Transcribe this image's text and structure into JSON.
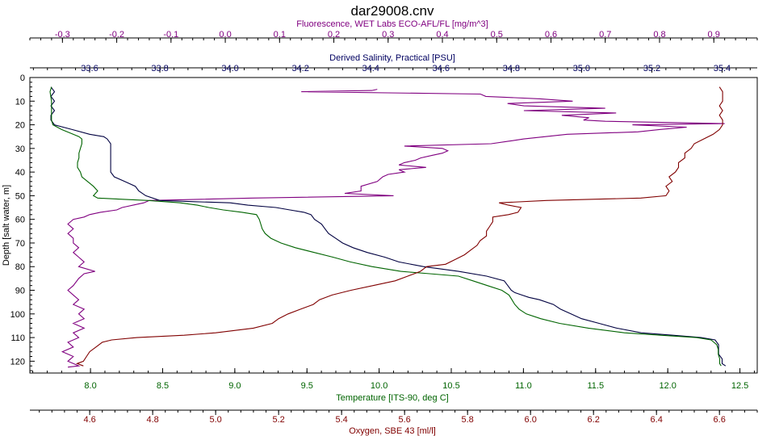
{
  "chart_data": {
    "type": "line",
    "title": "dar29008.cnv",
    "legend": "none",
    "grid": false,
    "colors": {
      "fluorescence": "#800080",
      "salinity": "#000040",
      "temperature": "#006400",
      "oxygen": "#800000"
    },
    "y_axis": {
      "label": "Depth [salt water, m]",
      "range": [
        0,
        125
      ],
      "inverted": true,
      "ticks": [
        "0",
        "10",
        "20",
        "30",
        "40",
        "50",
        "60",
        "70",
        "80",
        "90",
        "100",
        "110",
        "120"
      ]
    },
    "x_axes": [
      {
        "id": "fluorescence",
        "position": "top-outer",
        "label": "Fluorescence, WET Labs ECO-AFL/FL [mg/m^3]",
        "range": [
          -0.36,
          0.98
        ],
        "ticks": [
          "-0.3",
          "-0.2",
          "-0.1",
          "0.0",
          "0.1",
          "0.2",
          "0.3",
          "0.4",
          "0.5",
          "0.6",
          "0.7",
          "0.8",
          "0.9"
        ]
      },
      {
        "id": "salinity",
        "position": "top-inner",
        "label": "Derived Salinity, Practical [PSU]",
        "range": [
          33.43,
          35.5
        ],
        "ticks": [
          "33.6",
          "33.8",
          "34.0",
          "34.2",
          "34.4",
          "34.6",
          "34.8",
          "35.0",
          "35.2",
          "35.4"
        ]
      },
      {
        "id": "temperature",
        "position": "bottom-inner",
        "label": "Temperature [ITS-90, deg C]",
        "range": [
          7.58,
          12.62
        ],
        "ticks": [
          "8.0",
          "8.5",
          "9.0",
          "9.5",
          "10.0",
          "10.5",
          "11.0",
          "11.5",
          "12.0",
          "12.5"
        ]
      },
      {
        "id": "oxygen",
        "position": "bottom-outer",
        "label": "Oxygen, SBE 43 [ml/l]",
        "range": [
          4.41,
          6.72
        ],
        "ticks": [
          "4.6",
          "4.8",
          "5.0",
          "5.2",
          "5.4",
          "5.6",
          "5.8",
          "6.0",
          "6.2",
          "6.4",
          "6.6"
        ]
      }
    ],
    "series": [
      {
        "axis": "fluorescence",
        "points": [
          [
            0.28,
            5
          ],
          [
            0.27,
            5.5
          ],
          [
            0.14,
            6
          ],
          [
            0.47,
            7
          ],
          [
            0.48,
            8
          ],
          [
            0.58,
            9
          ],
          [
            0.64,
            10
          ],
          [
            0.52,
            11
          ],
          [
            0.55,
            12
          ],
          [
            0.7,
            13
          ],
          [
            0.55,
            14
          ],
          [
            0.72,
            15
          ],
          [
            0.62,
            16
          ],
          [
            0.67,
            17
          ],
          [
            0.66,
            18
          ],
          [
            0.7,
            18.5
          ],
          [
            0.92,
            19.5
          ],
          [
            0.75,
            20
          ],
          [
            0.85,
            21
          ],
          [
            0.8,
            22
          ],
          [
            0.76,
            23
          ],
          [
            0.63,
            24
          ],
          [
            0.59,
            25
          ],
          [
            0.55,
            26
          ],
          [
            0.52,
            27
          ],
          [
            0.49,
            28
          ],
          [
            0.33,
            29
          ],
          [
            0.4,
            30
          ],
          [
            0.41,
            31
          ],
          [
            0.4,
            32
          ],
          [
            0.38,
            33
          ],
          [
            0.36,
            34
          ],
          [
            0.35,
            35
          ],
          [
            0.33,
            36
          ],
          [
            0.32,
            37
          ],
          [
            0.37,
            38
          ],
          [
            0.32,
            39
          ],
          [
            0.33,
            40
          ],
          [
            0.3,
            41
          ],
          [
            0.29,
            42
          ],
          [
            0.28,
            44
          ],
          [
            0.25,
            46
          ],
          [
            0.25,
            48
          ],
          [
            0.22,
            49
          ],
          [
            0.31,
            50
          ],
          [
            0.05,
            51
          ],
          [
            -0.14,
            52
          ],
          [
            -0.15,
            53
          ],
          [
            -0.17,
            54
          ],
          [
            -0.19,
            55
          ],
          [
            -0.2,
            56
          ],
          [
            -0.23,
            57
          ],
          [
            -0.25,
            58
          ],
          [
            -0.26,
            59
          ],
          [
            -0.28,
            60
          ],
          [
            -0.29,
            62
          ],
          [
            -0.28,
            64
          ],
          [
            -0.29,
            66
          ],
          [
            -0.28,
            68
          ],
          [
            -0.28,
            70
          ],
          [
            -0.27,
            72
          ],
          [
            -0.28,
            74
          ],
          [
            -0.27,
            76
          ],
          [
            -0.26,
            78
          ],
          [
            -0.27,
            80
          ],
          [
            -0.24,
            82
          ],
          [
            -0.26,
            83
          ],
          [
            -0.27,
            85
          ],
          [
            -0.28,
            88
          ],
          [
            -0.29,
            90
          ],
          [
            -0.28,
            92
          ],
          [
            -0.27,
            94
          ],
          [
            -0.28,
            96
          ],
          [
            -0.26,
            98
          ],
          [
            -0.27,
            100
          ],
          [
            -0.26,
            102
          ],
          [
            -0.28,
            104
          ],
          [
            -0.26,
            106
          ],
          [
            -0.28,
            108
          ],
          [
            -0.27,
            110
          ],
          [
            -0.29,
            112
          ],
          [
            -0.28,
            114
          ],
          [
            -0.3,
            116
          ],
          [
            -0.28,
            118
          ],
          [
            -0.29,
            120
          ],
          [
            -0.28,
            121
          ],
          [
            -0.27,
            122
          ],
          [
            -0.29,
            122.5
          ]
        ]
      },
      {
        "axis": "salinity",
        "points": [
          [
            33.49,
            4
          ],
          [
            33.5,
            6
          ],
          [
            33.49,
            8
          ],
          [
            33.5,
            10
          ],
          [
            33.49,
            12
          ],
          [
            33.5,
            14
          ],
          [
            33.49,
            16
          ],
          [
            33.49,
            18
          ],
          [
            33.5,
            20
          ],
          [
            33.55,
            22
          ],
          [
            33.6,
            24
          ],
          [
            33.64,
            25
          ],
          [
            33.65,
            26
          ],
          [
            33.66,
            28
          ],
          [
            33.66,
            30
          ],
          [
            33.66,
            32
          ],
          [
            33.66,
            36
          ],
          [
            33.66,
            40
          ],
          [
            33.67,
            42
          ],
          [
            33.7,
            44
          ],
          [
            33.73,
            46
          ],
          [
            33.74,
            48
          ],
          [
            33.76,
            50
          ],
          [
            33.8,
            52
          ],
          [
            33.89,
            52.5
          ],
          [
            34.0,
            53
          ],
          [
            34.05,
            54
          ],
          [
            34.13,
            55
          ],
          [
            34.17,
            56
          ],
          [
            34.21,
            57
          ],
          [
            34.23,
            58
          ],
          [
            34.24,
            60
          ],
          [
            34.25,
            61
          ],
          [
            34.26,
            62
          ],
          [
            34.27,
            64
          ],
          [
            34.28,
            66
          ],
          [
            34.3,
            68
          ],
          [
            34.32,
            70
          ],
          [
            34.35,
            72
          ],
          [
            34.39,
            74
          ],
          [
            34.44,
            76
          ],
          [
            34.48,
            78
          ],
          [
            34.55,
            80
          ],
          [
            34.65,
            82
          ],
          [
            34.73,
            84
          ],
          [
            34.78,
            86
          ],
          [
            34.79,
            88
          ],
          [
            34.8,
            90
          ],
          [
            34.81,
            91
          ],
          [
            34.83,
            92
          ],
          [
            34.85,
            93
          ],
          [
            34.88,
            94
          ],
          [
            34.92,
            96
          ],
          [
            34.94,
            98
          ],
          [
            34.97,
            100
          ],
          [
            35.0,
            102
          ],
          [
            35.05,
            104
          ],
          [
            35.1,
            106
          ],
          [
            35.17,
            108
          ],
          [
            35.26,
            109
          ],
          [
            35.34,
            110
          ],
          [
            35.38,
            111
          ],
          [
            35.39,
            113
          ],
          [
            35.39,
            115
          ],
          [
            35.39,
            117
          ],
          [
            35.4,
            119
          ],
          [
            35.4,
            121
          ],
          [
            35.41,
            122
          ]
        ]
      },
      {
        "axis": "temperature",
        "points": [
          [
            7.73,
            4
          ],
          [
            7.72,
            6
          ],
          [
            7.73,
            10
          ],
          [
            7.73,
            14
          ],
          [
            7.73,
            18
          ],
          [
            7.74,
            20
          ],
          [
            7.8,
            22
          ],
          [
            7.88,
            24
          ],
          [
            7.92,
            25
          ],
          [
            7.94,
            26
          ],
          [
            7.94,
            28
          ],
          [
            7.93,
            30
          ],
          [
            7.92,
            32
          ],
          [
            7.92,
            34
          ],
          [
            7.91,
            36
          ],
          [
            7.91,
            38
          ],
          [
            7.93,
            40
          ],
          [
            7.94,
            42
          ],
          [
            7.98,
            44
          ],
          [
            8.02,
            46
          ],
          [
            8.05,
            48
          ],
          [
            8.02,
            50
          ],
          [
            8.05,
            51
          ],
          [
            8.22,
            51.5
          ],
          [
            8.4,
            52
          ],
          [
            8.62,
            53
          ],
          [
            8.74,
            54
          ],
          [
            8.82,
            55
          ],
          [
            8.92,
            56
          ],
          [
            9.05,
            57
          ],
          [
            9.15,
            58
          ],
          [
            9.17,
            60
          ],
          [
            9.18,
            62
          ],
          [
            9.19,
            64
          ],
          [
            9.21,
            66
          ],
          [
            9.25,
            68
          ],
          [
            9.32,
            70
          ],
          [
            9.42,
            72
          ],
          [
            9.55,
            74
          ],
          [
            9.68,
            76
          ],
          [
            9.8,
            78
          ],
          [
            9.95,
            80
          ],
          [
            10.15,
            82
          ],
          [
            10.35,
            83
          ],
          [
            10.55,
            84
          ],
          [
            10.65,
            86
          ],
          [
            10.75,
            88
          ],
          [
            10.85,
            90
          ],
          [
            10.9,
            92
          ],
          [
            10.92,
            94
          ],
          [
            10.94,
            96
          ],
          [
            10.97,
            98
          ],
          [
            11.02,
            100
          ],
          [
            11.12,
            102
          ],
          [
            11.25,
            104
          ],
          [
            11.45,
            106
          ],
          [
            11.7,
            108
          ],
          [
            11.95,
            109
          ],
          [
            12.2,
            110
          ],
          [
            12.3,
            111
          ],
          [
            12.34,
            113
          ],
          [
            12.35,
            115
          ],
          [
            12.35,
            117
          ],
          [
            12.36,
            119
          ],
          [
            12.36,
            121
          ],
          [
            12.37,
            122
          ]
        ]
      },
      {
        "axis": "oxygen",
        "points": [
          [
            6.6,
            4
          ],
          [
            6.61,
            6
          ],
          [
            6.61,
            8
          ],
          [
            6.61,
            10
          ],
          [
            6.6,
            12
          ],
          [
            6.61,
            14
          ],
          [
            6.6,
            16
          ],
          [
            6.61,
            18
          ],
          [
            6.61,
            20
          ],
          [
            6.6,
            22
          ],
          [
            6.58,
            24
          ],
          [
            6.55,
            26
          ],
          [
            6.52,
            28
          ],
          [
            6.51,
            30
          ],
          [
            6.49,
            32
          ],
          [
            6.49,
            34
          ],
          [
            6.47,
            36
          ],
          [
            6.47,
            38
          ],
          [
            6.46,
            40
          ],
          [
            6.44,
            42
          ],
          [
            6.45,
            44
          ],
          [
            6.43,
            46
          ],
          [
            6.44,
            48
          ],
          [
            6.43,
            50
          ],
          [
            6.35,
            51
          ],
          [
            6.05,
            52
          ],
          [
            5.9,
            53
          ],
          [
            5.93,
            54
          ],
          [
            5.97,
            55
          ],
          [
            5.96,
            57
          ],
          [
            5.93,
            58
          ],
          [
            5.88,
            59
          ],
          [
            5.88,
            61
          ],
          [
            5.87,
            63
          ],
          [
            5.86,
            65
          ],
          [
            5.86,
            67
          ],
          [
            5.84,
            69
          ],
          [
            5.83,
            71
          ],
          [
            5.81,
            73
          ],
          [
            5.79,
            75
          ],
          [
            5.76,
            77
          ],
          [
            5.73,
            79
          ],
          [
            5.67,
            80
          ],
          [
            5.65,
            82
          ],
          [
            5.61,
            84
          ],
          [
            5.57,
            86
          ],
          [
            5.5,
            88
          ],
          [
            5.43,
            90
          ],
          [
            5.37,
            92
          ],
          [
            5.33,
            94
          ],
          [
            5.31,
            96
          ],
          [
            5.27,
            98
          ],
          [
            5.23,
            100
          ],
          [
            5.2,
            102
          ],
          [
            5.18,
            104
          ],
          [
            5.12,
            106
          ],
          [
            5.0,
            108
          ],
          [
            4.9,
            109
          ],
          [
            4.75,
            110
          ],
          [
            4.67,
            111
          ],
          [
            4.64,
            112
          ],
          [
            4.62,
            114
          ],
          [
            4.6,
            116
          ],
          [
            4.59,
            118
          ],
          [
            4.58,
            120
          ],
          [
            4.56,
            121
          ],
          [
            4.58,
            122
          ]
        ]
      }
    ]
  }
}
